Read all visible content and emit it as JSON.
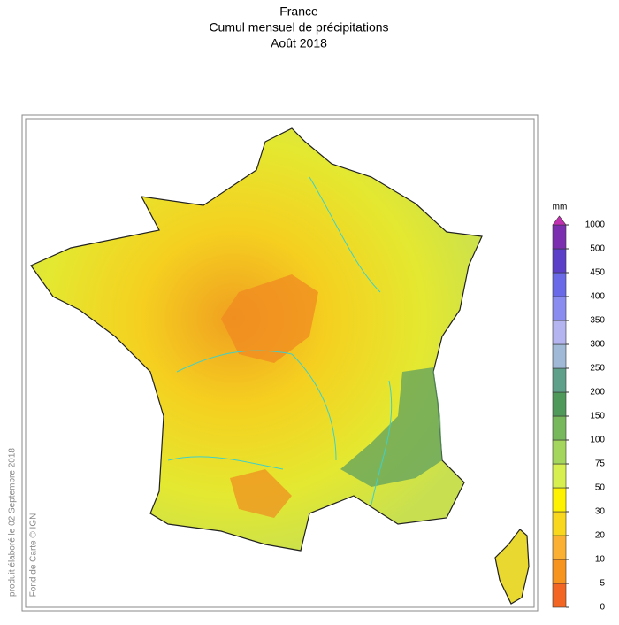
{
  "header": {
    "lines": [
      "France",
      "Cumul mensuel de précipitations",
      "Août 2018"
    ]
  },
  "credits": {
    "produced": "produit élaboré le 02 Septembre 2018",
    "basemap": "Fond de Carte © IGN"
  },
  "legend": {
    "unit": "mm",
    "breaks": [
      0,
      5,
      10,
      20,
      30,
      50,
      75,
      100,
      150,
      200,
      250,
      300,
      350,
      400,
      450,
      500,
      1000
    ],
    "colors": [
      "#f26522",
      "#f7941d",
      "#fbb034",
      "#f9d71c",
      "#fff200",
      "#d7ef4f",
      "#a4d65e",
      "#78b85c",
      "#4f9a5b",
      "#5fa08a",
      "#9fb9d6",
      "#b4b4f0",
      "#8a8cf0",
      "#6a6ae8",
      "#5b3fc8",
      "#7b2fb0"
    ],
    "over_color": "#c030b0"
  }
}
